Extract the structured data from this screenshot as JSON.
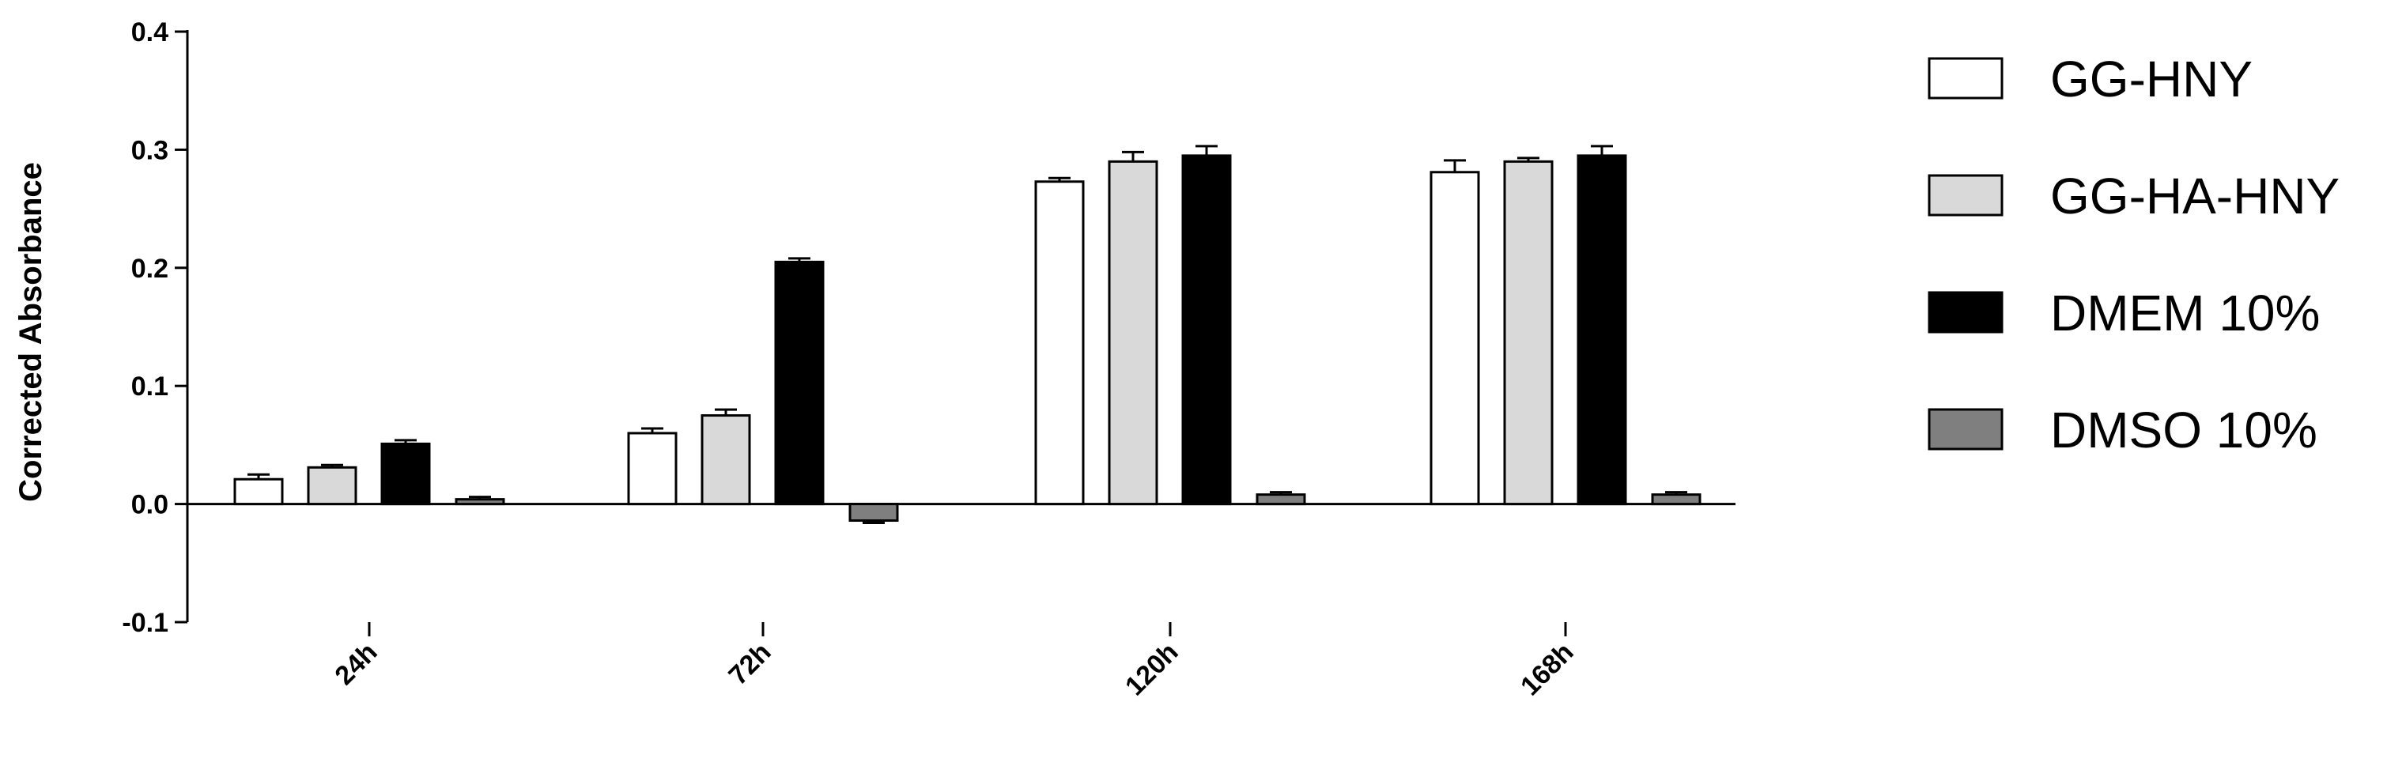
{
  "chart_data": {
    "type": "bar",
    "categories": [
      "24h",
      "72h",
      "120h",
      "168h"
    ],
    "ylabel": "Corrected Absorbance",
    "xlabel": "",
    "ylim": [
      -0.1,
      0.4
    ],
    "yticks": [
      "-0.1",
      "0.0",
      "0.1",
      "0.2",
      "0.3",
      "0.4"
    ],
    "yticks_values": [
      -0.1,
      0.0,
      0.1,
      0.2,
      0.3,
      0.4
    ],
    "legend_position": "right",
    "series": [
      {
        "name": "GG-HNY",
        "values": [
          0.021,
          0.06,
          0.273,
          0.281
        ],
        "errors": [
          0.004,
          0.004,
          0.003,
          0.01
        ],
        "color": "#ffffff"
      },
      {
        "name": "GG-HA-HNY",
        "values": [
          0.031,
          0.075,
          0.29,
          0.29
        ],
        "errors": [
          0.002,
          0.005,
          0.008,
          0.003
        ],
        "color": "#d9d9d9"
      },
      {
        "name": "DMEM 10%",
        "values": [
          0.051,
          0.205,
          0.295,
          0.295
        ],
        "errors": [
          0.003,
          0.003,
          0.008,
          0.008
        ],
        "color": "#000000"
      },
      {
        "name": "DMSO 10%",
        "values": [
          0.004,
          -0.014,
          0.008,
          0.008
        ],
        "errors": [
          0.002,
          0.002,
          0.002,
          0.002
        ],
        "color": "#7f7f7f"
      }
    ]
  }
}
